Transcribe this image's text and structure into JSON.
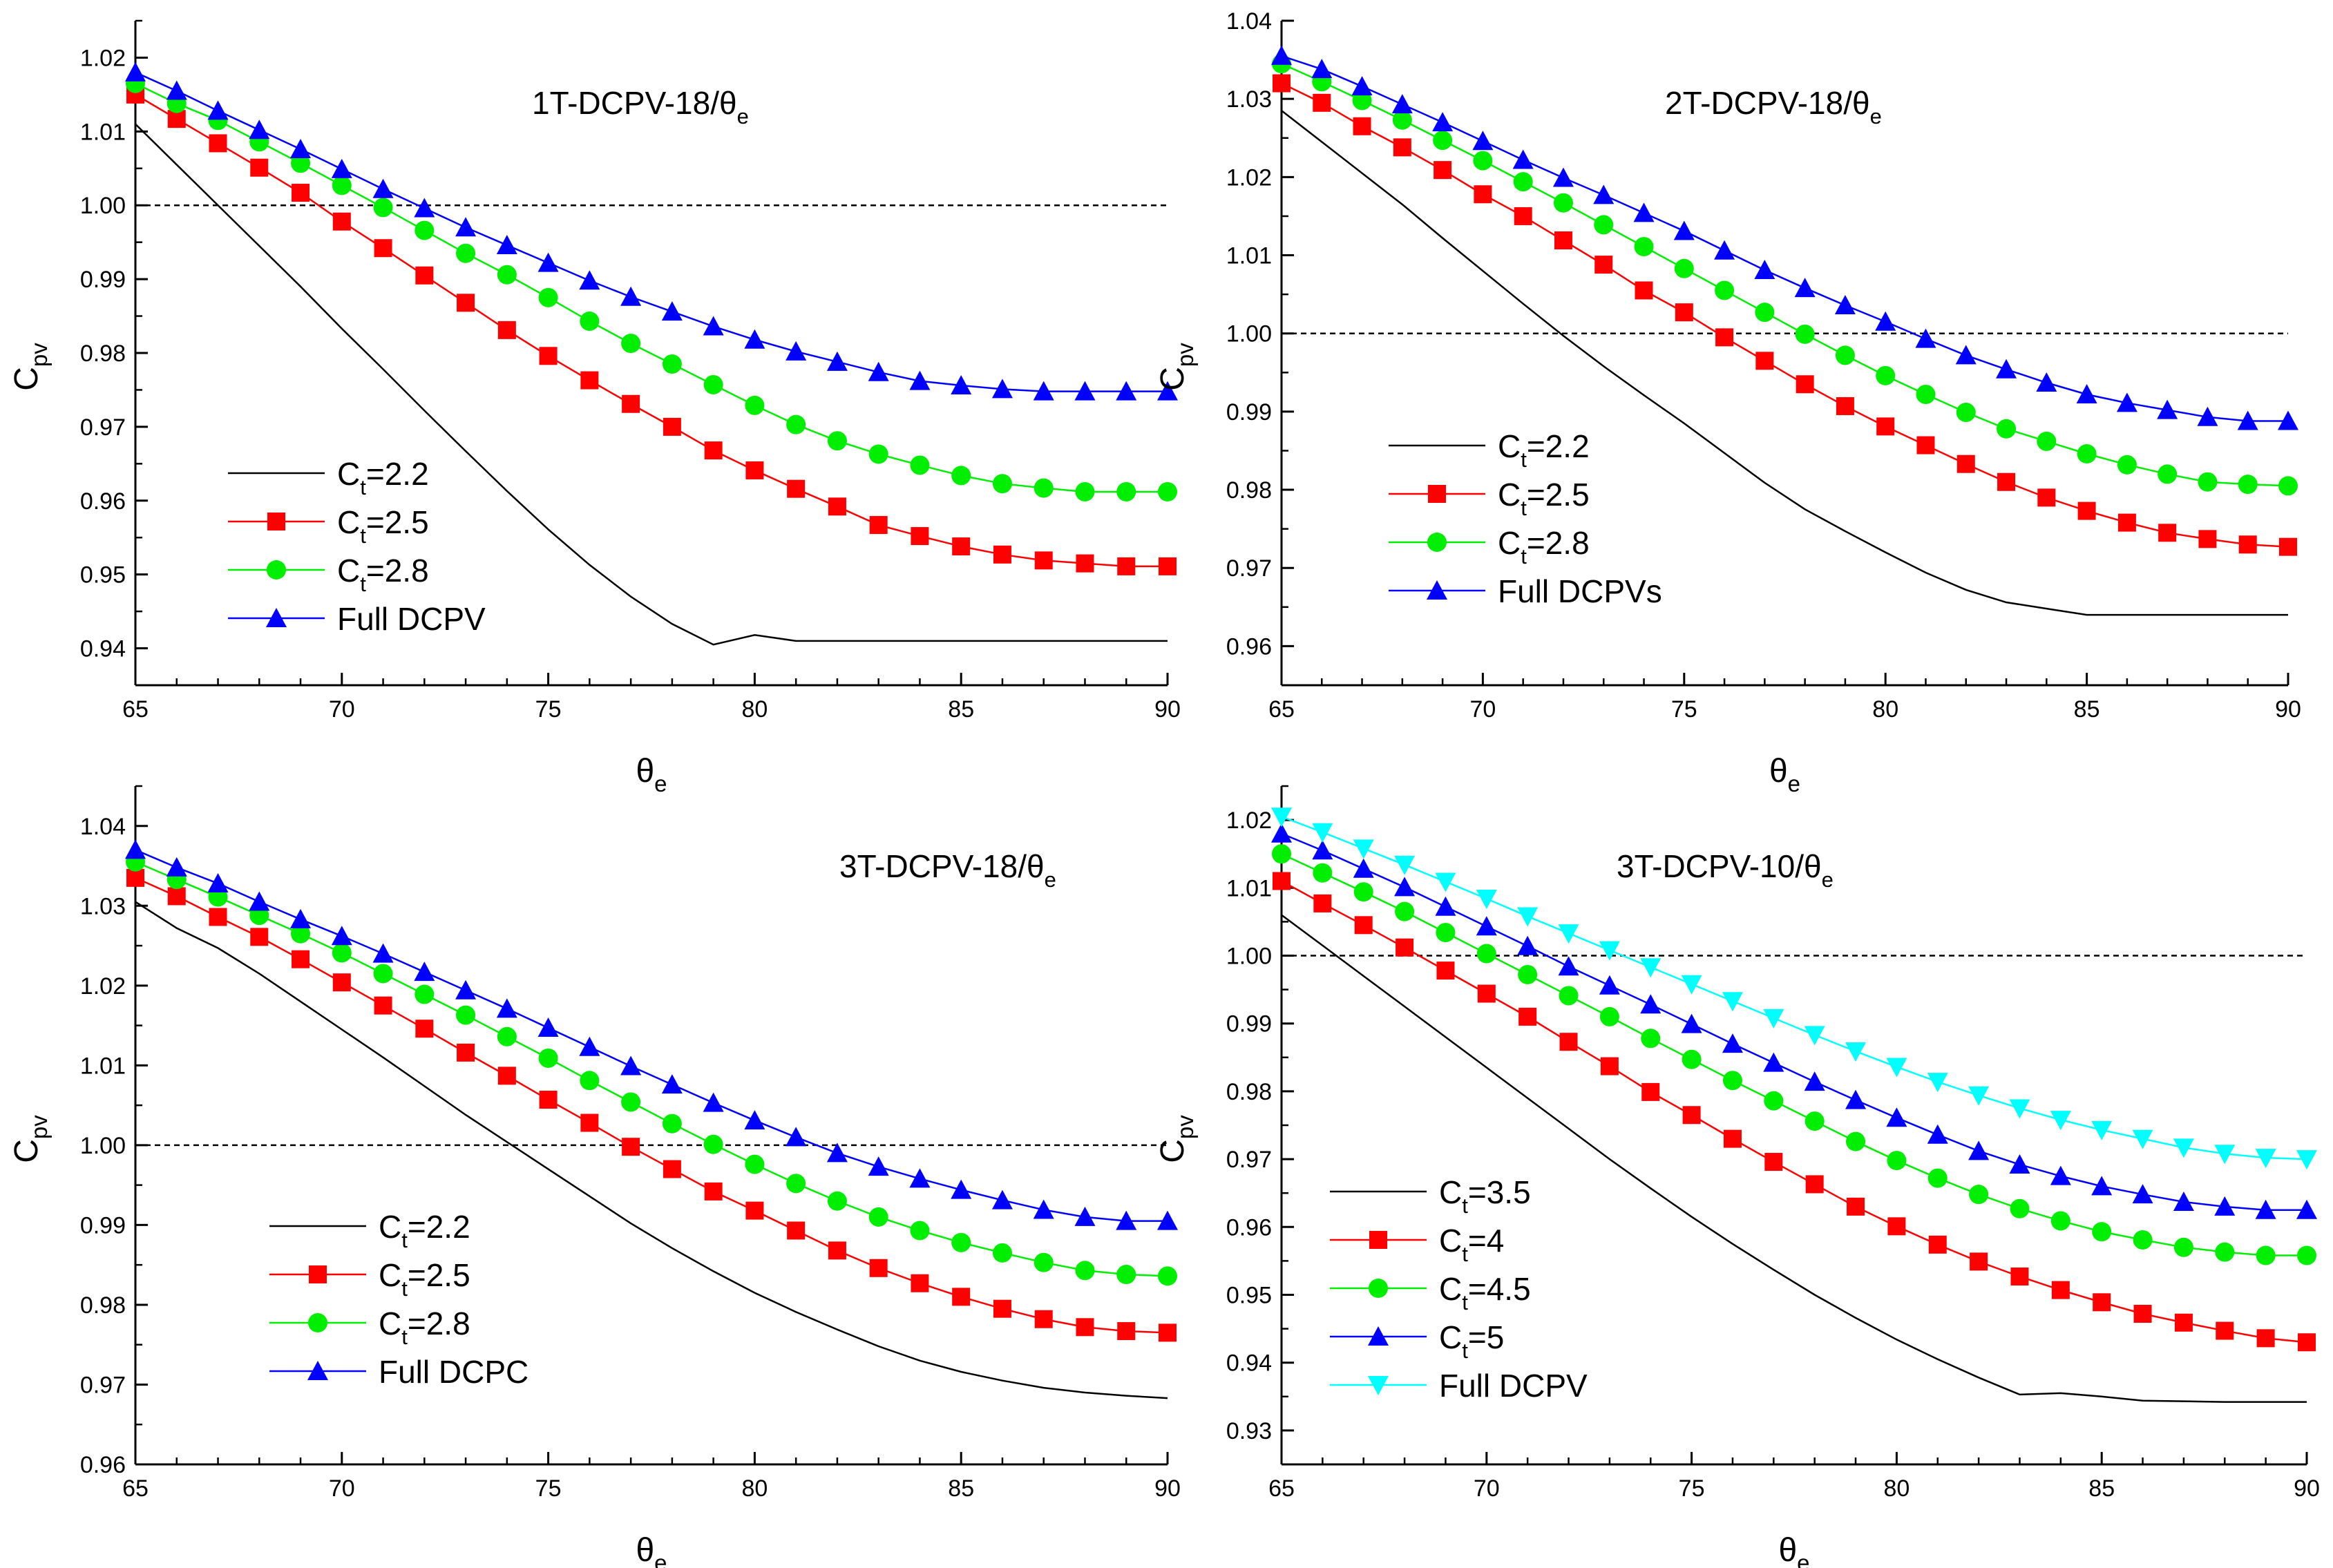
{
  "chart_data": [
    {
      "type": "line",
      "title": "1T-DCPV-18/θe",
      "title_main": "1T-DCPV-18/θ",
      "title_sub": "e",
      "xlabel": "θe",
      "xlabel_main": "θ",
      "xlabel_sub": "e",
      "ylabel": "Cpv",
      "ylabel_main": "C",
      "ylabel_sub": "pv",
      "xlim": [
        65,
        90
      ],
      "ylim": [
        0.935,
        1.025
      ],
      "x_ticks": [
        65,
        70,
        75,
        80,
        85,
        90
      ],
      "x_tick_labels": [
        "65",
        "70",
        "75",
        "80",
        "85",
        "90"
      ],
      "y_ticks": [
        0.94,
        0.95,
        0.96,
        0.97,
        0.98,
        0.99,
        1.0,
        1.01,
        1.02
      ],
      "y_tick_labels": [
        "0.94",
        "0.95",
        "0.96",
        "0.97",
        "0.98",
        "0.99",
        "1.00",
        "1.01",
        "1.02"
      ],
      "reference_line": 1.0,
      "legend_placement": "lower-left",
      "x": [
        65,
        66,
        67,
        68,
        69,
        70,
        71,
        72,
        73,
        74,
        75,
        76,
        77,
        78,
        79,
        80,
        81,
        82,
        83,
        84,
        85,
        86,
        87,
        88,
        89,
        90
      ],
      "series": [
        {
          "name": "Ct=2.2",
          "label_main": "C",
          "label_sub": "t",
          "label_rest": "=2.2",
          "color": "#000000",
          "marker": "none",
          "values": [
            1.011,
            1.0055,
            1.0,
            0.9945,
            0.989,
            0.9833,
            0.9778,
            0.9722,
            0.9667,
            0.9613,
            0.9561,
            0.9513,
            0.947,
            0.9433,
            0.9405,
            0.9418,
            0.941,
            0.941,
            0.941,
            0.941,
            0.941,
            0.941,
            0.941,
            0.941,
            0.941,
            0.941
          ]
        },
        {
          "name": "Ct=2.5",
          "label_main": "C",
          "label_sub": "t",
          "label_rest": "=2.5",
          "color": "#ff0000",
          "marker": "square",
          "values": [
            1.015,
            1.0117,
            1.0084,
            1.0051,
            1.0017,
            0.9978,
            0.9942,
            0.9905,
            0.9868,
            0.9831,
            0.9796,
            0.9763,
            0.9731,
            0.97,
            0.9668,
            0.9641,
            0.9616,
            0.9592,
            0.9567,
            0.9552,
            0.9538,
            0.9527,
            0.9519,
            0.9515,
            0.9511,
            0.9511
          ]
        },
        {
          "name": "Ct=2.8",
          "label_main": "C",
          "label_sub": "t",
          "label_rest": "=2.8",
          "color": "#00ee00",
          "marker": "circle",
          "values": [
            1.0165,
            1.0138,
            1.0115,
            1.0086,
            1.0057,
            1.0027,
            0.9997,
            0.9966,
            0.9935,
            0.9906,
            0.9875,
            0.9843,
            0.9813,
            0.9785,
            0.9757,
            0.9729,
            0.9703,
            0.9681,
            0.9663,
            0.9648,
            0.9634,
            0.9623,
            0.9617,
            0.9612,
            0.9612,
            0.9612
          ]
        },
        {
          "name": "Full DCPV",
          "label_main": "Full DCPV",
          "label_sub": "",
          "label_rest": "",
          "color": "#0000ff",
          "marker": "triangle-up",
          "values": [
            1.018,
            1.0155,
            1.0128,
            1.0102,
            1.0076,
            1.0049,
            1.0022,
            0.9996,
            0.997,
            0.9946,
            0.9922,
            0.9898,
            0.9876,
            0.9856,
            0.9836,
            0.9818,
            0.9802,
            0.9788,
            0.9774,
            0.9762,
            0.9756,
            0.9751,
            0.9748,
            0.9748,
            0.9748,
            0.9748
          ]
        }
      ]
    },
    {
      "type": "line",
      "title": "2T-DCPV-18/θe",
      "title_main": "2T-DCPV-18/θ",
      "title_sub": "e",
      "xlabel": "θe",
      "xlabel_main": "θ",
      "xlabel_sub": "e",
      "ylabel": "Cpv",
      "ylabel_main": "C",
      "ylabel_sub": "pv",
      "xlim": [
        65,
        90
      ],
      "ylim": [
        0.955,
        1.04
      ],
      "x_ticks": [
        65,
        70,
        75,
        80,
        85,
        90
      ],
      "x_tick_labels": [
        "65",
        "70",
        "75",
        "80",
        "85",
        "90"
      ],
      "y_ticks": [
        0.96,
        0.97,
        0.98,
        0.99,
        1.0,
        1.01,
        1.02,
        1.03,
        1.04
      ],
      "y_tick_labels": [
        "0.96",
        "0.97",
        "0.98",
        "0.99",
        "1.00",
        "1.01",
        "1.02",
        "1.03",
        "1.04"
      ],
      "reference_line": 1.0,
      "legend_placement": "lower-left",
      "x": [
        65,
        66,
        67,
        68,
        69,
        70,
        71,
        72,
        73,
        74,
        75,
        76,
        77,
        78,
        79,
        80,
        81,
        82,
        83,
        84,
        85,
        86,
        87,
        88,
        89,
        90
      ],
      "series": [
        {
          "name": "Ct=2.2",
          "label_main": "C",
          "label_sub": "t",
          "label_rest": "=2.2",
          "color": "#000000",
          "marker": "none",
          "values": [
            1.0285,
            1.0245,
            1.0205,
            1.0165,
            1.0122,
            1.008,
            1.0038,
            0.9997,
            0.9958,
            0.9921,
            0.9885,
            0.9847,
            0.9809,
            0.9775,
            0.9747,
            0.972,
            0.9694,
            0.9672,
            0.9656,
            0.9648,
            0.964,
            0.964,
            0.964,
            0.964,
            0.964,
            0.964
          ]
        },
        {
          "name": "Ct=2.5",
          "label_main": "C",
          "label_sub": "t",
          "label_rest": "=2.5",
          "color": "#ff0000",
          "marker": "square",
          "values": [
            1.032,
            1.0295,
            1.0265,
            1.0238,
            1.0209,
            1.0178,
            1.015,
            1.0119,
            1.0088,
            1.0055,
            1.0027,
            0.9995,
            0.9965,
            0.9935,
            0.9907,
            0.9881,
            0.9857,
            0.9833,
            0.981,
            0.979,
            0.9773,
            0.9758,
            0.9745,
            0.9737,
            0.973,
            0.9727
          ]
        },
        {
          "name": "Ct=2.8",
          "label_main": "C",
          "label_sub": "t",
          "label_rest": "=2.8",
          "color": "#00ee00",
          "marker": "circle",
          "values": [
            1.0345,
            1.0322,
            1.0298,
            1.0273,
            1.0247,
            1.0221,
            1.0194,
            1.0167,
            1.0139,
            1.0111,
            1.0083,
            1.0055,
            1.0027,
            0.9999,
            0.9972,
            0.9946,
            0.9922,
            0.9899,
            0.9878,
            0.9862,
            0.9846,
            0.9832,
            0.982,
            0.981,
            0.9807,
            0.9805
          ]
        },
        {
          "name": "Full DCPVs",
          "label_main": "Full DCPVs",
          "label_sub": "",
          "label_rest": "",
          "color": "#0000ff",
          "marker": "triangle-up",
          "values": [
            1.0355,
            1.0338,
            1.0316,
            1.0293,
            1.027,
            1.0246,
            1.0222,
            1.0199,
            1.0177,
            1.0154,
            1.0131,
            1.0106,
            1.0081,
            1.0058,
            1.0036,
            1.0015,
            0.9993,
            0.9972,
            0.9954,
            0.9937,
            0.9922,
            0.9911,
            0.9902,
            0.9893,
            0.9888,
            0.9888
          ]
        }
      ]
    },
    {
      "type": "line",
      "title": "3T-DCPV-18/θe",
      "title_main": "3T-DCPV-18/θ",
      "title_sub": "e",
      "xlabel": "θe",
      "xlabel_main": "θ",
      "xlabel_sub": "e",
      "ylabel": "Cpv",
      "ylabel_main": "C",
      "ylabel_sub": "pv",
      "xlim": [
        65,
        90
      ],
      "ylim": [
        0.96,
        1.045
      ],
      "x_ticks": [
        65,
        70,
        75,
        80,
        85,
        90
      ],
      "x_tick_labels": [
        "65",
        "70",
        "75",
        "80",
        "85",
        "90"
      ],
      "y_ticks": [
        0.96,
        0.97,
        0.98,
        0.99,
        1.0,
        1.01,
        1.02,
        1.03,
        1.04
      ],
      "y_tick_labels": [
        "0.96",
        "0.97",
        "0.98",
        "0.99",
        "1.00",
        "1.01",
        "1.02",
        "1.03",
        "1.04"
      ],
      "reference_line": 1.0,
      "legend_placement": "lower-left",
      "x": [
        65,
        66,
        67,
        68,
        69,
        70,
        71,
        72,
        73,
        74,
        75,
        76,
        77,
        78,
        79,
        80,
        81,
        82,
        83,
        84,
        85,
        86,
        87,
        88,
        89,
        90
      ],
      "series": [
        {
          "name": "Ct=2.2",
          "label_main": "C",
          "label_sub": "t",
          "label_rest": "=2.2",
          "color": "#000000",
          "marker": "none",
          "values": [
            1.0305,
            1.0272,
            1.0247,
            1.0215,
            1.018,
            1.0145,
            1.011,
            1.0074,
            1.0038,
            1.0004,
            0.997,
            0.9936,
            0.9902,
            0.9871,
            0.9842,
            0.9815,
            0.9791,
            0.9769,
            0.9748,
            0.973,
            0.9716,
            0.9705,
            0.9696,
            0.969,
            0.9686,
            0.9683
          ]
        },
        {
          "name": "Ct=2.5",
          "label_main": "C",
          "label_sub": "t",
          "label_rest": "=2.5",
          "color": "#ff0000",
          "marker": "square",
          "values": [
            1.0335,
            1.0312,
            1.0286,
            1.0261,
            1.0233,
            1.0204,
            1.0175,
            1.0146,
            1.0116,
            1.0087,
            1.0057,
            1.0028,
            0.9998,
            0.997,
            0.9942,
            0.9918,
            0.9893,
            0.9868,
            0.9846,
            0.9827,
            0.981,
            0.9795,
            0.9782,
            0.9772,
            0.9767,
            0.9765
          ]
        },
        {
          "name": "Ct=2.8",
          "label_main": "C",
          "label_sub": "t",
          "label_rest": "=2.8",
          "color": "#00ee00",
          "marker": "circle",
          "values": [
            1.0355,
            1.0333,
            1.0311,
            1.0288,
            1.0265,
            1.0241,
            1.0215,
            1.0189,
            1.0163,
            1.0136,
            1.0109,
            1.0081,
            1.0054,
            1.0027,
            1.0001,
            0.9976,
            0.9952,
            0.993,
            0.991,
            0.9893,
            0.9878,
            0.9865,
            0.9853,
            0.9843,
            0.9838,
            0.9836
          ]
        },
        {
          "name": "Full DCPC",
          "label_main": "Full DCPC",
          "label_sub": "",
          "label_rest": "",
          "color": "#0000ff",
          "marker": "triangle-up",
          "values": [
            1.037,
            1.0348,
            1.0328,
            1.0305,
            1.0283,
            1.0262,
            1.024,
            1.0217,
            1.0194,
            1.0171,
            1.0147,
            1.0123,
            1.0099,
            1.0076,
            1.0053,
            1.0031,
            1.001,
            0.999,
            0.9973,
            0.9958,
            0.9944,
            0.9931,
            0.9919,
            0.991,
            0.9905,
            0.9905
          ]
        }
      ]
    },
    {
      "type": "line",
      "title": "3T-DCPV-10/θe",
      "title_main": "3T-DCPV-10/θ",
      "title_sub": "e",
      "xlabel": "θe",
      "xlabel_main": "θ",
      "xlabel_sub": "e",
      "ylabel": "Cpv",
      "ylabel_main": "C",
      "ylabel_sub": "pv",
      "xlim": [
        65,
        90
      ],
      "ylim": [
        0.925,
        1.025
      ],
      "x_ticks": [
        65,
        70,
        75,
        80,
        85,
        90
      ],
      "x_tick_labels": [
        "65",
        "70",
        "75",
        "80",
        "85",
        "90"
      ],
      "y_ticks": [
        0.93,
        0.94,
        0.95,
        0.96,
        0.97,
        0.98,
        0.99,
        1.0,
        1.01,
        1.02
      ],
      "y_tick_labels": [
        "0.93",
        "0.94",
        "0.95",
        "0.96",
        "0.97",
        "0.98",
        "0.99",
        "1.00",
        "1.01",
        "1.02"
      ],
      "reference_line": 1.0,
      "legend_placement": "lower-left",
      "x": [
        65,
        66,
        67,
        68,
        69,
        70,
        71,
        72,
        73,
        74,
        75,
        76,
        77,
        78,
        79,
        80,
        81,
        82,
        83,
        84,
        85,
        86,
        87,
        88,
        89,
        90
      ],
      "series": [
        {
          "name": "Ct=3.5",
          "label_main": "C",
          "label_sub": "t",
          "label_rest": "=3.5",
          "color": "#000000",
          "marker": "none",
          "values": [
            1.006,
            1.0015,
            0.997,
            0.9925,
            0.988,
            0.9835,
            0.979,
            0.9745,
            0.97,
            0.9657,
            0.9615,
            0.9575,
            0.9537,
            0.95,
            0.9466,
            0.9434,
            0.9405,
            0.9378,
            0.9353,
            0.9355,
            0.935,
            0.9344,
            0.9343,
            0.9342,
            0.9342,
            0.9342
          ]
        },
        {
          "name": "Ct=4",
          "label_main": "C",
          "label_sub": "t",
          "label_rest": "=4",
          "color": "#ff0000",
          "marker": "square",
          "values": [
            1.011,
            1.0077,
            1.0045,
            1.0012,
            0.9978,
            0.9944,
            0.991,
            0.9873,
            0.9837,
            0.9799,
            0.9765,
            0.973,
            0.9696,
            0.9663,
            0.963,
            0.9601,
            0.9574,
            0.9549,
            0.9527,
            0.9507,
            0.9489,
            0.9472,
            0.9459,
            0.9447,
            0.9436,
            0.943
          ]
        },
        {
          "name": "Ct=4.5",
          "label_main": "C",
          "label_sub": "t",
          "label_rest": "=4.5",
          "color": "#00ee00",
          "marker": "circle",
          "values": [
            1.015,
            1.0122,
            1.0094,
            1.0065,
            1.0034,
            1.0003,
            0.9972,
            0.9941,
            0.991,
            0.9878,
            0.9847,
            0.9816,
            0.9786,
            0.9756,
            0.9726,
            0.9698,
            0.9672,
            0.9648,
            0.9627,
            0.9609,
            0.9593,
            0.9581,
            0.957,
            0.9563,
            0.9558,
            0.9558
          ]
        },
        {
          "name": "Ct=5",
          "label_main": "C",
          "label_sub": "t",
          "label_rest": "=5",
          "color": "#0000ff",
          "marker": "triangle-up",
          "values": [
            1.018,
            1.0155,
            1.0128,
            1.0101,
            1.0072,
            1.0043,
            1.0014,
            0.9984,
            0.9956,
            0.9928,
            0.9899,
            0.987,
            0.9842,
            0.9814,
            0.9787,
            0.9761,
            0.9736,
            0.9712,
            0.9692,
            0.9675,
            0.966,
            0.9648,
            0.9637,
            0.963,
            0.9625,
            0.9625
          ]
        },
        {
          "name": "Full DCPV",
          "label_main": "Full DCPV",
          "label_sub": "",
          "label_rest": "",
          "color": "#00ffff",
          "marker": "triangle-down",
          "values": [
            1.0205,
            1.0182,
            1.0158,
            1.0134,
            1.0109,
            1.0084,
            1.0058,
            1.0033,
            1.0008,
            0.9983,
            0.9958,
            0.9933,
            0.9908,
            0.9883,
            0.9859,
            0.9836,
            0.9814,
            0.9794,
            0.9775,
            0.9758,
            0.9743,
            0.973,
            0.9717,
            0.9708,
            0.9702,
            0.97
          ]
        }
      ]
    }
  ]
}
